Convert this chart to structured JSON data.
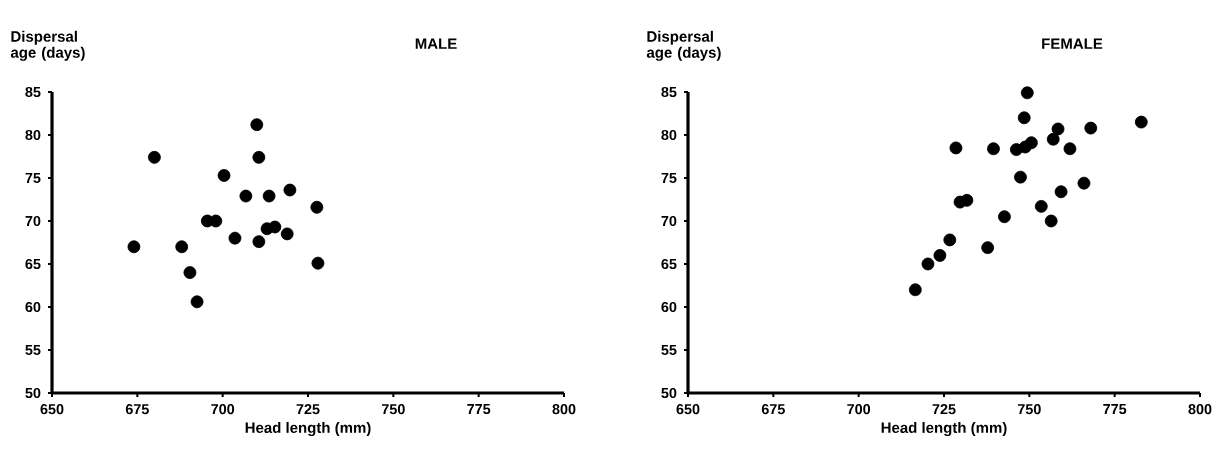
{
  "chart_data": [
    {
      "type": "scatter",
      "title": "MALE",
      "xlabel": "Head length (mm)",
      "ylabel": "Dispersal age (days)",
      "marker": "circle",
      "xlim": [
        650,
        800
      ],
      "ylim": [
        50,
        85
      ],
      "xticks": [
        650,
        675,
        700,
        725,
        750,
        775,
        800
      ],
      "yticks": [
        50,
        55,
        60,
        65,
        70,
        75,
        80,
        85
      ],
      "series": [
        {
          "color": "#000000",
          "x": [
            674,
            680,
            688,
            690.4,
            692.5,
            695.5,
            698,
            700.4,
            703.6,
            706.8,
            710,
            710.6,
            713.6,
            719.7,
            727.6,
            727.9,
            710.6,
            713,
            715.3,
            718.9
          ],
          "values": [
            67,
            77.4,
            67,
            64,
            60.6,
            70,
            70,
            75.3,
            68,
            72.9,
            81.2,
            77.4,
            72.9,
            73.6,
            71.6,
            65.1,
            67.6,
            69.1,
            69.3,
            68.5
          ]
        }
      ]
    },
    {
      "type": "scatter",
      "title": "FEMALE",
      "xlabel": "Head length (mm)",
      "ylabel": "Dispersal age (days)",
      "marker": "circle",
      "xlim": [
        650,
        800
      ],
      "ylim": [
        50,
        85
      ],
      "xticks": [
        650,
        675,
        700,
        725,
        750,
        775,
        800
      ],
      "yticks": [
        50,
        55,
        60,
        65,
        70,
        75,
        80,
        85
      ],
      "series": [
        {
          "color": "#000000",
          "x": [
            716.6,
            720.3,
            723.8,
            726.7,
            728.5,
            729.7,
            731.7,
            737.8,
            739.5,
            742.7,
            746.2,
            746.8,
            747.4,
            748.8,
            750.6,
            748.5,
            749.4,
            753.5,
            756.4,
            757,
            758.4,
            759.3,
            761.9,
            768,
            766,
            782.8
          ],
          "values": [
            62,
            65,
            66,
            67.8,
            78.5,
            72.2,
            72.4,
            66.9,
            78.4,
            70.5,
            78.3,
            null,
            75.1,
            78.6,
            79.1,
            82,
            84.9,
            71.7,
            70,
            79.5,
            80.7,
            73.4,
            78.4,
            80.8,
            74.4,
            81.5
          ]
        }
      ]
    }
  ]
}
